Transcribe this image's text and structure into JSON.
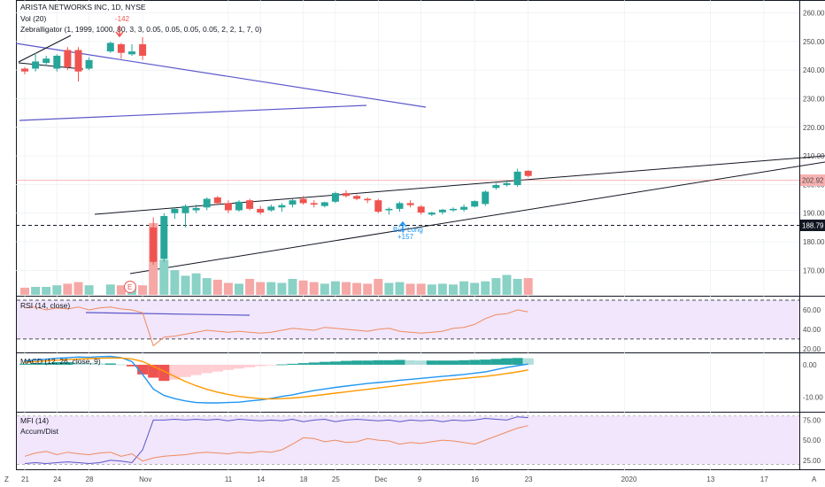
{
  "header": {
    "symbol_line": "ARISTA NETWORKS INC, 1D, NYSE",
    "volume_legend": "Vol (20)",
    "indicator_legend": "Zebralligator (1, 1999, 1000, 80, 3, 3, 0.05, 0.05, 0.05, 0.05, 2, 2, 1, 7, 0)"
  },
  "price_tags": {
    "last_price": "202.92",
    "support_level": "188.79"
  },
  "annotations": {
    "signal_top": "-142",
    "signal_bottom_line1": "Buy Long",
    "signal_bottom_line2": "+157",
    "earnings_marker": "E"
  },
  "panes": {
    "rsi_legend": "RSI (14, close)",
    "macd_legend": "MACD (12, 26, close, 9)",
    "mfi_legend": "MFI (14)",
    "accum_legend": "Accum/Dist"
  },
  "time_axis": {
    "labels": [
      "21",
      "24",
      "28",
      "Nov",
      "11",
      "14",
      "18",
      "25",
      "Dec",
      "9",
      "16",
      "23",
      "2020",
      "13",
      "17",
      "A"
    ]
  },
  "corner_icons": {
    "left_corner": "Z",
    "right_corner": "A"
  },
  "colors": {
    "up": "#26a69a",
    "down": "#ef5350",
    "vol_up": "#8ad1c6",
    "vol_down": "#f5a8a6",
    "trendline_blue": "#5b57c9",
    "rsi_line": "#f08a5d",
    "rsi_band": "#f1e6fb",
    "macd_line": "#2196f3",
    "signal_line": "#ff9800",
    "mfi_line": "#5b57c9",
    "accum_line": "#f08a5d",
    "support_tag": "#131722",
    "last_tag": "#f8b1b1"
  },
  "chart_data": [
    {
      "type": "candlestick",
      "ylim": [
        163,
        262
      ],
      "yticks": [
        170,
        180,
        190,
        200,
        210,
        220,
        230,
        240,
        250,
        260
      ],
      "candles": [
        {
          "x": 0,
          "o": 240.5,
          "h": 241,
          "l": 238.5,
          "c": 239.5
        },
        {
          "x": 1,
          "o": 240.5,
          "h": 246,
          "l": 239.5,
          "c": 243
        },
        {
          "x": 2,
          "o": 242.5,
          "h": 245,
          "l": 241.5,
          "c": 244
        },
        {
          "x": 3,
          "o": 240.5,
          "h": 245.5,
          "l": 239.5,
          "c": 245
        },
        {
          "x": 4,
          "o": 247,
          "h": 248,
          "l": 240,
          "c": 241
        },
        {
          "x": 5,
          "o": 247,
          "h": 248,
          "l": 236,
          "c": 239.5
        },
        {
          "x": 6,
          "o": 240.5,
          "h": 244.5,
          "l": 240,
          "c": 243.5
        },
        {
          "x": 8,
          "o": 246.5,
          "h": 250,
          "l": 246,
          "c": 249.5
        },
        {
          "x": 9,
          "o": 249,
          "h": 249.5,
          "l": 244,
          "c": 246
        },
        {
          "x": 10,
          "o": 245.5,
          "h": 249,
          "l": 245,
          "c": 246.5
        },
        {
          "x": 11,
          "o": 249,
          "h": 251.5,
          "l": 243.5,
          "c": 245
        },
        {
          "x": 12,
          "o": 185,
          "h": 188.5,
          "l": 172,
          "c": 173
        },
        {
          "x": 13,
          "o": 174,
          "h": 190,
          "l": 173,
          "c": 189
        },
        {
          "x": 14,
          "o": 190,
          "h": 192,
          "l": 188,
          "c": 191.5
        },
        {
          "x": 15,
          "o": 190,
          "h": 193,
          "l": 185,
          "c": 192.5
        },
        {
          "x": 16,
          "o": 191,
          "h": 193,
          "l": 190,
          "c": 191.8
        },
        {
          "x": 17,
          "o": 192,
          "h": 195.5,
          "l": 191,
          "c": 195
        },
        {
          "x": 18,
          "o": 195.5,
          "h": 196,
          "l": 193,
          "c": 193.5
        },
        {
          "x": 19,
          "o": 193.5,
          "h": 194.5,
          "l": 190,
          "c": 191
        },
        {
          "x": 20,
          "o": 191,
          "h": 194.5,
          "l": 190.5,
          "c": 194
        },
        {
          "x": 21,
          "o": 194.5,
          "h": 195,
          "l": 191,
          "c": 191.5
        },
        {
          "x": 22,
          "o": 191.5,
          "h": 192.5,
          "l": 189.5,
          "c": 190.2
        },
        {
          "x": 23,
          "o": 191,
          "h": 193,
          "l": 190.5,
          "c": 192.3
        },
        {
          "x": 24,
          "o": 192,
          "h": 193.5,
          "l": 190.5,
          "c": 192.8
        },
        {
          "x": 25,
          "o": 193,
          "h": 195,
          "l": 192,
          "c": 194.5
        },
        {
          "x": 26,
          "o": 195,
          "h": 196,
          "l": 193,
          "c": 193.5
        },
        {
          "x": 27,
          "o": 193.5,
          "h": 194.5,
          "l": 192,
          "c": 193
        },
        {
          "x": 28,
          "o": 192.5,
          "h": 194,
          "l": 192,
          "c": 193.8
        },
        {
          "x": 29,
          "o": 194,
          "h": 197.5,
          "l": 193.5,
          "c": 197
        },
        {
          "x": 30,
          "o": 197,
          "h": 198,
          "l": 195.5,
          "c": 196
        },
        {
          "x": 31,
          "o": 196,
          "h": 196.5,
          "l": 194.5,
          "c": 195
        },
        {
          "x": 32,
          "o": 195,
          "h": 195.5,
          "l": 193.5,
          "c": 194.5
        },
        {
          "x": 33,
          "o": 194.5,
          "h": 195,
          "l": 190,
          "c": 190.5
        },
        {
          "x": 34,
          "o": 191,
          "h": 192,
          "l": 189.5,
          "c": 191.5
        },
        {
          "x": 35,
          "o": 191.5,
          "h": 194,
          "l": 190.5,
          "c": 193.5
        },
        {
          "x": 36,
          "o": 193.5,
          "h": 194.5,
          "l": 192,
          "c": 192.8
        },
        {
          "x": 37,
          "o": 192.3,
          "h": 192.8,
          "l": 189.5,
          "c": 190.2
        },
        {
          "x": 38,
          "o": 189.5,
          "h": 190.5,
          "l": 189,
          "c": 190.2
        },
        {
          "x": 39,
          "o": 190.3,
          "h": 191.5,
          "l": 189.5,
          "c": 191.2
        },
        {
          "x": 40,
          "o": 191,
          "h": 192,
          "l": 190.5,
          "c": 191.5
        },
        {
          "x": 41,
          "o": 191.2,
          "h": 193,
          "l": 190.5,
          "c": 192.2
        },
        {
          "x": 42,
          "o": 192.3,
          "h": 194.5,
          "l": 192,
          "c": 194.2
        },
        {
          "x": 43,
          "o": 193.2,
          "h": 198,
          "l": 192.5,
          "c": 197.5
        },
        {
          "x": 44,
          "o": 198.8,
          "h": 200.5,
          "l": 198.2,
          "c": 199.8
        },
        {
          "x": 45,
          "o": 199.8,
          "h": 201.5,
          "l": 199.3,
          "c": 200.5
        },
        {
          "x": 46,
          "o": 199.8,
          "h": 205.5,
          "l": 199.2,
          "c": 204.5
        },
        {
          "x": 47,
          "o": 204.8,
          "h": 205,
          "l": 202.5,
          "c": 203
        }
      ]
    },
    {
      "type": "bar",
      "series": [
        {
          "name": "Vol (20)",
          "values": [
            0.09,
            0.1,
            0.1,
            0.12,
            0.14,
            0.16,
            0.12,
            0.13,
            0.12,
            0.1,
            0.12,
            0.9,
            0.44,
            0.31,
            0.24,
            0.27,
            0.21,
            0.19,
            0.15,
            0.14,
            0.2,
            0.16,
            0.16,
            0.15,
            0.2,
            0.18,
            0.16,
            0.14,
            0.17,
            0.16,
            0.15,
            0.14,
            0.2,
            0.15,
            0.16,
            0.14,
            0.14,
            0.13,
            0.14,
            0.13,
            0.17,
            0.15,
            0.17,
            0.21,
            0.25,
            0.2,
            0.21,
            0.02
          ]
        }
      ],
      "ylim": [
        0,
        1
      ]
    },
    {
      "type": "line",
      "title": "RSI (14, close)",
      "ylim": [
        18,
        70
      ],
      "yticks": [
        20,
        40,
        60
      ],
      "bands": [
        30,
        70
      ],
      "series": [
        {
          "name": "RSI",
          "values": [
            62,
            63,
            60,
            62,
            61,
            63,
            60,
            62,
            63,
            61,
            60,
            57,
            23,
            32,
            33,
            35,
            37,
            39,
            38,
            37,
            38,
            37,
            36,
            37,
            39,
            41,
            40,
            39,
            42,
            41,
            40,
            39,
            38,
            40,
            41,
            38,
            37,
            36,
            37,
            38,
            41,
            42,
            45,
            51,
            55,
            56,
            60,
            58
          ]
        }
      ]
    },
    {
      "type": "bar",
      "title": "MACD (12, 26, close, 9)",
      "ylim": [
        -14,
        3
      ],
      "yticks": [
        0,
        -10
      ],
      "series": [
        {
          "name": "Histogram",
          "values": [
            0.3,
            0.5,
            0.6,
            0.8,
            0.8,
            0.7,
            0.6,
            0.4,
            0.4,
            0.1,
            -0.5,
            -3.0,
            -4.0,
            -5.0,
            -4.6,
            -3.8,
            -3.2,
            -2.6,
            -2.1,
            -1.6,
            -1.2,
            -0.8,
            -0.4,
            -0.2,
            0.1,
            0.3,
            0.5,
            0.7,
            0.9,
            1.0,
            1.2,
            1.3,
            1.3,
            1.4,
            1.4,
            1.5,
            1.4,
            1.3,
            1.3,
            1.3,
            1.3,
            1.4,
            1.5,
            1.6,
            1.8,
            2.0,
            2.1,
            2.0
          ]
        },
        {
          "name": "MACD",
          "values": [
            1.2,
            1.5,
            1.7,
            2.0,
            2.2,
            2.4,
            2.3,
            2.5,
            2.6,
            2.2,
            1.0,
            -3.0,
            -7.5,
            -9.5,
            -10.5,
            -11.2,
            -11.7,
            -11.8,
            -11.8,
            -11.7,
            -11.6,
            -11.2,
            -10.9,
            -10.4,
            -9.8,
            -9.3,
            -8.6,
            -8.0,
            -7.5,
            -7.0,
            -6.6,
            -6.2,
            -5.8,
            -5.5,
            -5.2,
            -4.8,
            -4.5,
            -4.2,
            -3.9,
            -3.6,
            -3.3,
            -3.0,
            -2.6,
            -2.2,
            -1.5,
            -0.8,
            -0.3,
            0.2
          ]
        },
        {
          "name": "Signal",
          "values": [
            0.8,
            1.0,
            1.2,
            1.4,
            1.6,
            1.8,
            1.9,
            2.0,
            2.1,
            2.1,
            1.8,
            1.0,
            -0.5,
            -2.0,
            -3.6,
            -5.2,
            -6.5,
            -7.6,
            -8.5,
            -9.2,
            -9.8,
            -10.2,
            -10.5,
            -10.6,
            -10.5,
            -10.3,
            -10.0,
            -9.6,
            -9.2,
            -8.8,
            -8.4,
            -8.0,
            -7.6,
            -7.2,
            -6.8,
            -6.4,
            -6.0,
            -5.6,
            -5.2,
            -4.8,
            -4.5,
            -4.2,
            -3.9,
            -3.6,
            -3.2,
            -2.7,
            -2.2,
            -1.6
          ]
        }
      ]
    },
    {
      "type": "line",
      "title": "MFI (14)",
      "ylim": [
        16,
        82
      ],
      "yticks": [
        25,
        50,
        75
      ],
      "bands": [
        20,
        80
      ],
      "series": [
        {
          "name": "MFI (14)",
          "values": [
            21,
            22,
            21,
            22,
            23,
            22,
            21,
            22,
            25,
            24,
            22,
            38,
            75,
            75,
            76,
            75,
            76,
            75,
            76,
            74,
            76,
            75,
            74,
            75,
            74,
            76,
            73,
            75,
            76,
            73,
            75,
            76,
            75,
            74,
            75,
            73,
            75,
            74,
            75,
            73,
            75,
            74,
            75,
            77,
            76,
            75,
            79,
            78
          ]
        },
        {
          "name": "Accum/Dist",
          "values": [
            30,
            34,
            36,
            32,
            35,
            33,
            32,
            34,
            35,
            30,
            33,
            24,
            28,
            30,
            31,
            32,
            34,
            35,
            34,
            33,
            35,
            34,
            36,
            35,
            38,
            45,
            53,
            52,
            48,
            50,
            47,
            48,
            52,
            50,
            49,
            45,
            47,
            46,
            48,
            50,
            49,
            47,
            45,
            50,
            55,
            60,
            65,
            68
          ]
        }
      ]
    }
  ]
}
